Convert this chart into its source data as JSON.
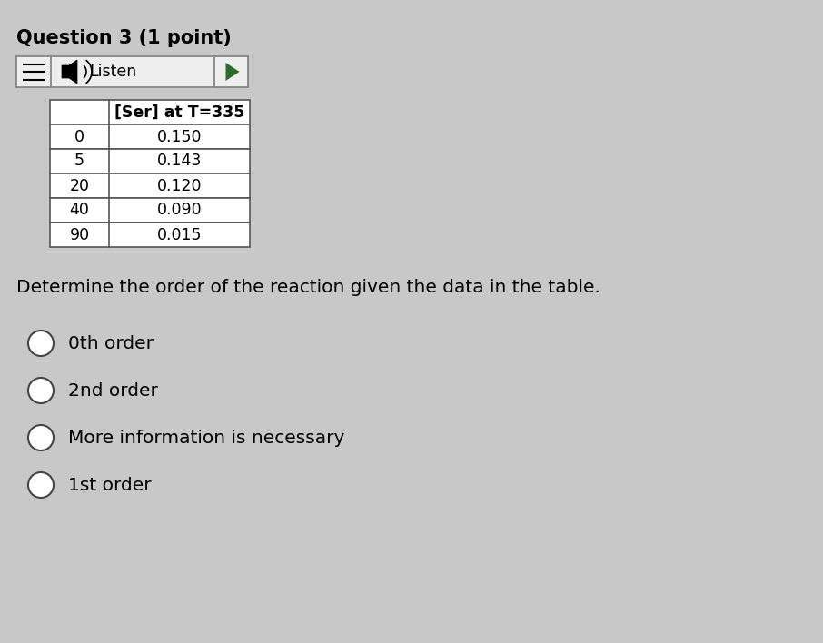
{
  "title": "Question 3 (1 point)",
  "title_fontsize": 15,
  "background_color": "#c8c8c8",
  "table_header_col2": "[Ser] at T=335",
  "table_rows": [
    [
      "0",
      "0.150"
    ],
    [
      "5",
      "0.143"
    ],
    [
      "20",
      "0.120"
    ],
    [
      "40",
      "0.090"
    ],
    [
      "90",
      "0.015"
    ]
  ],
  "question_text": "Determine the order of the reaction given the data in the table.",
  "question_fontsize": 14.5,
  "options": [
    "0th order",
    "2nd order",
    "More information is necessary",
    "1st order"
  ],
  "option_fontsize": 14.5,
  "table_fontsize": 12.5,
  "listen_label": "Listen",
  "listen_fontsize": 12.5,
  "table_cell_color": "#ffffff",
  "table_border_color": "#555555",
  "listen_bg": "#eeeeee",
  "listen_border": "#888888",
  "play_triangle_color": "#2a6b2a"
}
